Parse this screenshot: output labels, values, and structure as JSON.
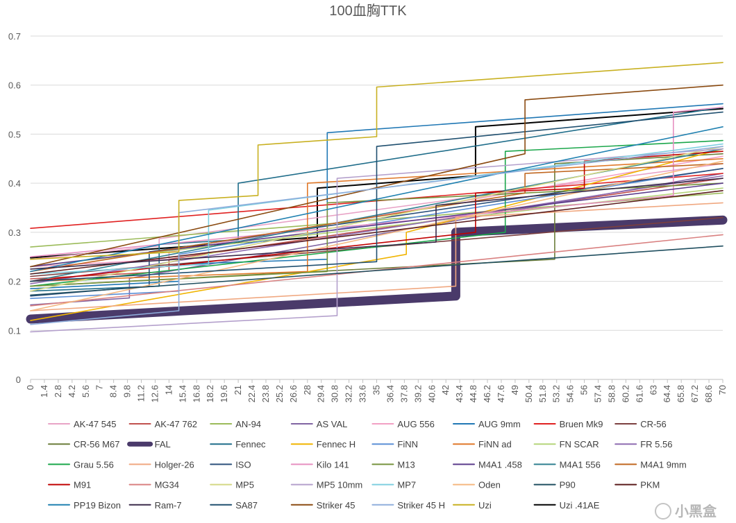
{
  "chart_data": {
    "type": "line",
    "title": "100血胸TTK",
    "xlabel": "",
    "ylabel": "",
    "ylim": [
      0,
      0.7
    ],
    "xlim": [
      0,
      70
    ],
    "y_ticks": [
      "0",
      "0.1",
      "0.2",
      "0.3",
      "0.4",
      "0.5",
      "0.6",
      "0.7"
    ],
    "x_ticks": [
      "0",
      "1.4",
      "2.8",
      "4.2",
      "5.6",
      "7",
      "8.4",
      "9.8",
      "11.2",
      "12.6",
      "14",
      "15.4",
      "16.8",
      "18.2",
      "19.6",
      "21",
      "22.4",
      "23.8",
      "25.2",
      "26.6",
      "28",
      "29.4",
      "30.8",
      "32.2",
      "33.6",
      "35",
      "36.4",
      "37.8",
      "39.2",
      "40.6",
      "42",
      "43.4",
      "44.8",
      "46.2",
      "47.6",
      "49",
      "50.4",
      "51.8",
      "53.2",
      "54.6",
      "56",
      "57.4",
      "58.8",
      "60.2",
      "61.6",
      "63",
      "64.4",
      "65.8",
      "67.2",
      "68.6",
      "70"
    ],
    "grid": true,
    "legend_position": "bottom",
    "series": [
      {
        "name": "AK-47 545",
        "color": "#e8a3c6",
        "width": 1.6,
        "points": [
          [
            0,
            0.245
          ],
          [
            13,
            0.272
          ],
          [
            13,
            0.287
          ],
          [
            70,
            0.44
          ]
        ]
      },
      {
        "name": "AK-47 762",
        "color": "#c0504d",
        "width": 1.6,
        "points": [
          [
            0,
            0.205
          ],
          [
            14,
            0.22
          ],
          [
            14,
            0.245
          ],
          [
            70,
            0.41
          ]
        ]
      },
      {
        "name": "AN-94",
        "color": "#9bbb59",
        "width": 1.6,
        "points": [
          [
            0,
            0.27
          ],
          [
            70,
            0.38
          ]
        ]
      },
      {
        "name": "AS VAL",
        "color": "#8064a2",
        "width": 1.6,
        "points": [
          [
            0,
            0.152
          ],
          [
            10,
            0.166
          ],
          [
            10,
            0.206
          ],
          [
            70,
            0.42
          ]
        ]
      },
      {
        "name": "AUG 556",
        "color": "#f2a0c4",
        "width": 1.6,
        "points": [
          [
            0,
            0.23
          ],
          [
            14,
            0.245
          ],
          [
            14,
            0.26
          ],
          [
            70,
            0.455
          ]
        ]
      },
      {
        "name": "AUG 9mm",
        "color": "#1f77b4",
        "width": 1.6,
        "points": [
          [
            0,
            0.185
          ],
          [
            15,
            0.2
          ],
          [
            15,
            0.235
          ],
          [
            30,
            0.245
          ],
          [
            30,
            0.503
          ],
          [
            70,
            0.562
          ]
        ]
      },
      {
        "name": "Bruen Mk9",
        "color": "#e02020",
        "width": 1.6,
        "points": [
          [
            0,
            0.308
          ],
          [
            70,
            0.42
          ]
        ]
      },
      {
        "name": "CR-56",
        "color": "#7b3f3f",
        "width": 1.6,
        "points": [
          [
            0,
            0.21
          ],
          [
            70,
            0.33
          ]
        ]
      },
      {
        "name": "CR-56 M67",
        "color": "#6b7d3a",
        "width": 1.6,
        "points": [
          [
            0,
            0.19
          ],
          [
            53,
            0.245
          ],
          [
            53,
            0.44
          ],
          [
            70,
            0.46
          ]
        ]
      },
      {
        "name": "FAL",
        "color": "#4a3a6a",
        "width": 13,
        "points": [
          [
            0,
            0.123
          ],
          [
            43,
            0.17
          ],
          [
            43,
            0.3
          ],
          [
            70,
            0.325
          ]
        ]
      },
      {
        "name": "Fennec",
        "color": "#1f6d8a",
        "width": 1.6,
        "points": [
          [
            0,
            0.18
          ],
          [
            13,
            0.19
          ],
          [
            13,
            0.275
          ],
          [
            21,
            0.285
          ],
          [
            21,
            0.4
          ],
          [
            70,
            0.555
          ]
        ]
      },
      {
        "name": "Fennec H",
        "color": "#f0b400",
        "width": 1.6,
        "points": [
          [
            0,
            0.12
          ],
          [
            38,
            0.255
          ],
          [
            38,
            0.3
          ],
          [
            70,
            0.47
          ]
        ]
      },
      {
        "name": "FiNN",
        "color": "#5b8fd6",
        "width": 1.6,
        "points": [
          [
            0,
            0.165
          ],
          [
            15,
            0.18
          ],
          [
            15,
            0.255
          ],
          [
            70,
            0.43
          ]
        ]
      },
      {
        "name": "FiNN ad",
        "color": "#e0792a",
        "width": 1.6,
        "points": [
          [
            0,
            0.2
          ],
          [
            28,
            0.22
          ],
          [
            28,
            0.4
          ],
          [
            70,
            0.45
          ]
        ]
      },
      {
        "name": "FN SCAR",
        "color": "#b5d57a",
        "width": 1.6,
        "points": [
          [
            0,
            0.23
          ],
          [
            70,
            0.39
          ]
        ]
      },
      {
        "name": "FR 5.56",
        "color": "#8e6bb0",
        "width": 1.6,
        "points": [
          [
            0,
            0.195
          ],
          [
            70,
            0.415
          ]
        ]
      },
      {
        "name": "Grau 5.56",
        "color": "#1aa64a",
        "width": 1.6,
        "points": [
          [
            0,
            0.19
          ],
          [
            48,
            0.3
          ],
          [
            48,
            0.465
          ],
          [
            70,
            0.487
          ]
        ]
      },
      {
        "name": "Holger-26",
        "color": "#f0a880",
        "width": 1.6,
        "points": [
          [
            0,
            0.14
          ],
          [
            43,
            0.19
          ],
          [
            43,
            0.33
          ],
          [
            70,
            0.36
          ]
        ]
      },
      {
        "name": "ISO",
        "color": "#2b4f7a",
        "width": 1.6,
        "points": [
          [
            0,
            0.17
          ],
          [
            12,
            0.19
          ],
          [
            12,
            0.26
          ],
          [
            70,
            0.43
          ]
        ]
      },
      {
        "name": "Kilo 141",
        "color": "#e68fc0",
        "width": 1.6,
        "points": [
          [
            0,
            0.25
          ],
          [
            65,
            0.375
          ],
          [
            65,
            0.545
          ],
          [
            70,
            0.555
          ]
        ]
      },
      {
        "name": "M13",
        "color": "#76923c",
        "width": 1.6,
        "points": [
          [
            0,
            0.19
          ],
          [
            30,
            0.22
          ],
          [
            30,
            0.36
          ],
          [
            70,
            0.4
          ]
        ]
      },
      {
        "name": "M4A1 .458",
        "color": "#5a3a8a",
        "width": 1.6,
        "points": [
          [
            0,
            0.23
          ],
          [
            70,
            0.4
          ]
        ]
      },
      {
        "name": "M4A1 556",
        "color": "#2f7f8f",
        "width": 1.6,
        "points": [
          [
            0,
            0.2
          ],
          [
            70,
            0.47
          ]
        ]
      },
      {
        "name": "M4A1 9mm",
        "color": "#c0661f",
        "width": 1.6,
        "points": [
          [
            0,
            0.22
          ],
          [
            50,
            0.38
          ],
          [
            50,
            0.42
          ],
          [
            70,
            0.44
          ]
        ]
      },
      {
        "name": "M91",
        "color": "#c00000",
        "width": 1.6,
        "points": [
          [
            0,
            0.2
          ],
          [
            45,
            0.3
          ],
          [
            45,
            0.38
          ],
          [
            56,
            0.39
          ],
          [
            56,
            0.445
          ],
          [
            70,
            0.465
          ]
        ]
      },
      {
        "name": "MG34",
        "color": "#d98080",
        "width": 1.6,
        "points": [
          [
            0,
            0.15
          ],
          [
            70,
            0.295
          ]
        ]
      },
      {
        "name": "MP5",
        "color": "#d4d884",
        "width": 1.6,
        "points": [
          [
            0,
            0.18
          ],
          [
            70,
            0.475
          ]
        ]
      },
      {
        "name": "MP5 10mm",
        "color": "#b4a0cc",
        "width": 1.6,
        "points": [
          [
            0,
            0.097
          ],
          [
            31,
            0.13
          ],
          [
            31,
            0.41
          ],
          [
            70,
            0.47
          ]
        ]
      },
      {
        "name": "MP7",
        "color": "#7fcfe0",
        "width": 1.6,
        "points": [
          [
            0,
            0.215
          ],
          [
            18,
            0.235
          ],
          [
            18,
            0.345
          ],
          [
            70,
            0.48
          ]
        ]
      },
      {
        "name": "Oden",
        "color": "#f5b880",
        "width": 1.6,
        "points": [
          [
            0,
            0.14
          ],
          [
            70,
            0.445
          ]
        ]
      },
      {
        "name": "P90",
        "color": "#1f4e5f",
        "width": 1.6,
        "points": [
          [
            0,
            0.172
          ],
          [
            70,
            0.272
          ]
        ]
      },
      {
        "name": "PKM",
        "color": "#5a1a1a",
        "width": 1.6,
        "points": [
          [
            0,
            0.215
          ],
          [
            70,
            0.385
          ]
        ]
      },
      {
        "name": "PP19 Bizon",
        "color": "#1f80b0",
        "width": 1.6,
        "points": [
          [
            0,
            0.22
          ],
          [
            70,
            0.515
          ]
        ]
      },
      {
        "name": "Ram-7",
        "color": "#3a2a4a",
        "width": 1.6,
        "points": [
          [
            0,
            0.225
          ],
          [
            41,
            0.28
          ],
          [
            41,
            0.355
          ],
          [
            70,
            0.41
          ]
        ]
      },
      {
        "name": "SA87",
        "color": "#1f4f6f",
        "width": 1.6,
        "points": [
          [
            0,
            0.2
          ],
          [
            35,
            0.24
          ],
          [
            35,
            0.475
          ],
          [
            70,
            0.545
          ]
        ]
      },
      {
        "name": "Striker 45",
        "color": "#8a4a10",
        "width": 1.6,
        "points": [
          [
            0,
            0.23
          ],
          [
            50,
            0.46
          ],
          [
            50,
            0.57
          ],
          [
            70,
            0.6
          ]
        ]
      },
      {
        "name": "Striker 45 H",
        "color": "#8faedc",
        "width": 1.6,
        "points": [
          [
            0,
            0.112
          ],
          [
            15,
            0.14
          ],
          [
            15,
            0.34
          ],
          [
            70,
            0.475
          ]
        ]
      },
      {
        "name": "Uzi",
        "color": "#c8b020",
        "width": 1.6,
        "points": [
          [
            0,
            0.245
          ],
          [
            15,
            0.26
          ],
          [
            15,
            0.365
          ],
          [
            23,
            0.375
          ],
          [
            23,
            0.478
          ],
          [
            35,
            0.495
          ],
          [
            35,
            0.596
          ],
          [
            70,
            0.646
          ]
        ]
      },
      {
        "name": "Uzi .41AE",
        "color": "#000000",
        "width": 2,
        "points": [
          [
            0,
            0.248
          ],
          [
            29,
            0.29
          ],
          [
            29,
            0.39
          ],
          [
            45,
            0.415
          ],
          [
            45,
            0.515
          ],
          [
            70,
            0.552
          ]
        ]
      }
    ]
  },
  "watermark": "小黑盒"
}
